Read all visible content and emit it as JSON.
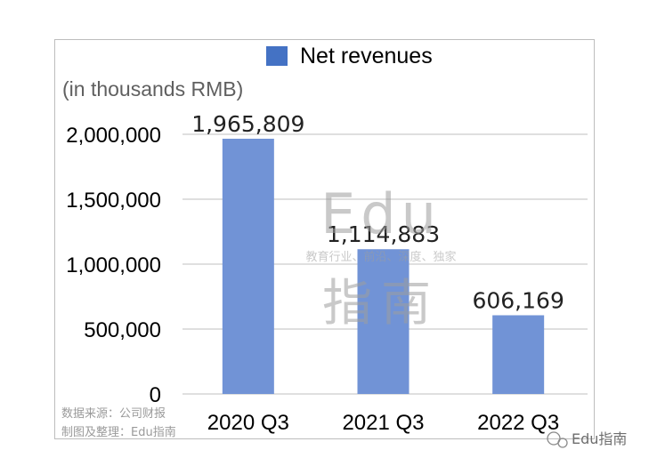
{
  "chart_data": {
    "type": "bar",
    "unit_note": "(in thousands RMB)",
    "categories": [
      "2020 Q3",
      "2021 Q3",
      "2022 Q3"
    ],
    "series": [
      {
        "name": "Net revenues",
        "values": [
          1965809,
          1114883,
          606169
        ]
      }
    ],
    "value_labels": [
      "1,965,809",
      "1,114,883",
      "606,169"
    ],
    "y_ticks": [
      0,
      500000,
      1000000,
      1500000,
      2000000
    ],
    "y_tick_labels": [
      "0",
      "500,000",
      "1,000,000",
      "1,500,000",
      "2,000,000"
    ],
    "ylim": [
      0,
      2000000
    ],
    "grid": true,
    "legend_position": "top-center",
    "colors": {
      "bar": "#7193d6",
      "legend_swatch": "#4472c4",
      "grid": "#bfbfbf"
    }
  },
  "watermark": {
    "title": "Edu",
    "tagline": "教育行业、前沿、深度、独家",
    "subtitle": "指南"
  },
  "source_note": {
    "line1": "数据来源：公司财报",
    "line2": "制图及整理：Edu指南"
  },
  "brand_footer": "Edu指南"
}
